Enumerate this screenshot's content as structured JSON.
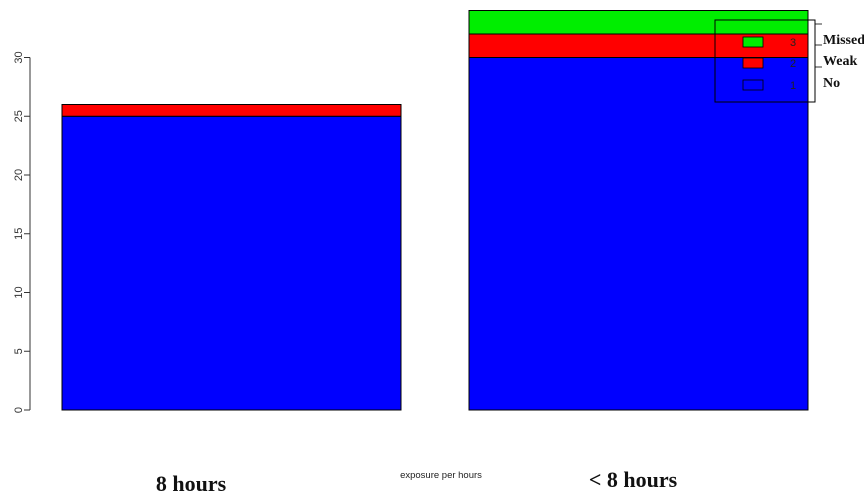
{
  "chart_data": {
    "type": "bar",
    "stacked": true,
    "xlabel": "exposure per hours",
    "ylabel": "",
    "ylim": [
      0,
      34
    ],
    "yticks": [
      0,
      5,
      10,
      15,
      20,
      25,
      30
    ],
    "categories": [
      "8 hours",
      "< 8 hours"
    ],
    "series": [
      {
        "name": "No",
        "code": "1",
        "color": "#0000ff",
        "values": [
          25,
          30
        ]
      },
      {
        "name": "Weak",
        "code": "2",
        "color": "#ff0000",
        "values": [
          1,
          2
        ]
      },
      {
        "name": "Missed",
        "code": "3",
        "color": "#00ee00",
        "values": [
          0,
          2
        ]
      }
    ],
    "legend_position": "top-right",
    "grid": false
  }
}
